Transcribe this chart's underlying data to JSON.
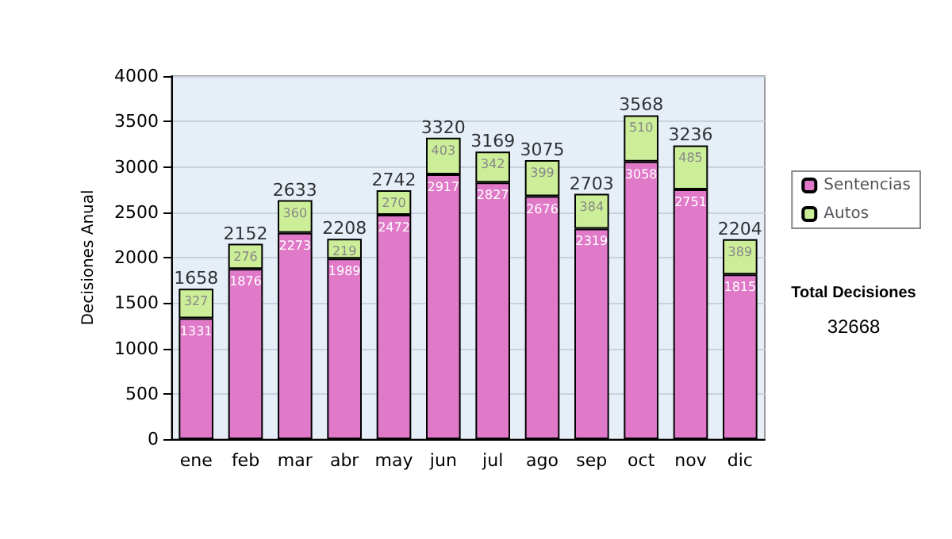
{
  "chart_data": {
    "type": "bar",
    "stacked": true,
    "ylabel": "Decisiones Anual",
    "categories": [
      "ene",
      "feb",
      "mar",
      "abr",
      "may",
      "jun",
      "jul",
      "ago",
      "sep",
      "oct",
      "nov",
      "dic"
    ],
    "series": [
      {
        "name": "Sentencias",
        "color": "#e07ac8",
        "values": [
          1331,
          1876,
          2273,
          1989,
          2472,
          2917,
          2827,
          2676,
          2319,
          3058,
          2751,
          1815
        ]
      },
      {
        "name": "Autos",
        "color": "#ccee99",
        "values": [
          327,
          276,
          360,
          219,
          270,
          403,
          342,
          399,
          384,
          510,
          485,
          389
        ]
      }
    ],
    "totals": [
      "1658",
      "2152",
      "2633",
      "2208",
      "2742",
      "3320",
      "3169",
      "3075",
      "2703",
      "3568",
      "3236",
      "2204"
    ],
    "ylim": [
      0,
      4000
    ],
    "yticks": [
      0,
      500,
      1000,
      1500,
      2000,
      2500,
      3000,
      3500,
      4000
    ],
    "grid": "y",
    "legend": "right",
    "data_labels": true,
    "annotations": [
      "Total Decisiones",
      "32668"
    ]
  }
}
